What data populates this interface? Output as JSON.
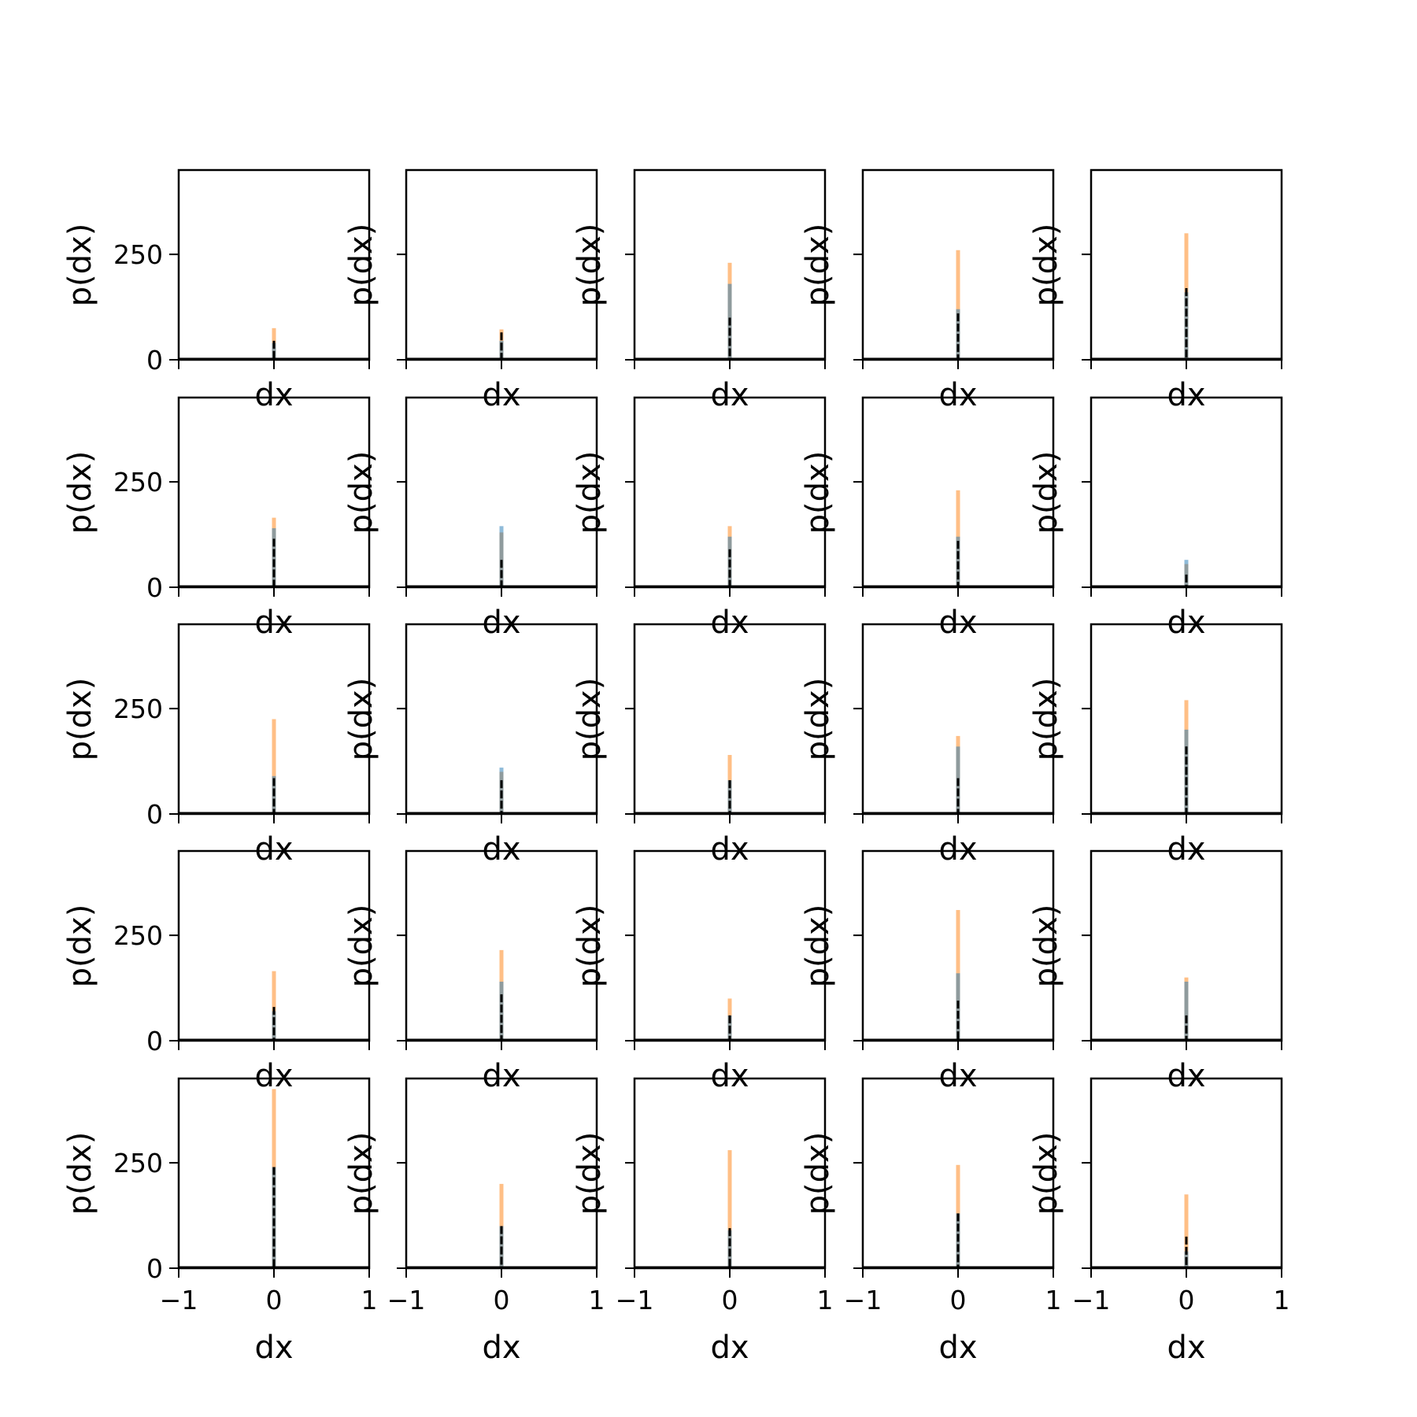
{
  "chart_data": {
    "type": "bar",
    "layout": "grid 5x5 of histogram panels",
    "xlabel": "dx",
    "ylabel": "p(dx)",
    "xlim": [
      -1,
      1
    ],
    "ylim": [
      0,
      450
    ],
    "xticks": [
      -1,
      0,
      1
    ],
    "xtick_labels": [
      "−1",
      "0",
      "1"
    ],
    "yticks": [
      0,
      250
    ],
    "ytick_labels": [
      "0",
      "250"
    ],
    "colors": {
      "series_a": "#1f77b4",
      "series_b": "#ff7f0e",
      "reference": "#000000"
    },
    "panels": [
      [
        {
          "orange": 75,
          "blue": 40,
          "black": 45
        },
        {
          "orange": 72,
          "blue": 45,
          "black": 65
        },
        {
          "orange": 230,
          "blue": 180,
          "black": 100
        },
        {
          "orange": 260,
          "blue": 120,
          "black": 110
        },
        {
          "orange": 300,
          "blue": 160,
          "black": 170
        }
      ],
      [
        {
          "orange": 165,
          "blue": 140,
          "black": 115
        },
        {
          "orange": 130,
          "blue": 145,
          "black": 65
        },
        {
          "orange": 145,
          "blue": 120,
          "black": 90
        },
        {
          "orange": 230,
          "blue": 120,
          "black": 110
        },
        {
          "orange": 55,
          "blue": 65,
          "black": 30
        }
      ],
      [
        {
          "orange": 225,
          "blue": 90,
          "black": 85
        },
        {
          "orange": 100,
          "blue": 110,
          "black": 80
        },
        {
          "orange": 140,
          "blue": 80,
          "black": 80
        },
        {
          "orange": 185,
          "blue": 160,
          "black": 85
        },
        {
          "orange": 270,
          "blue": 200,
          "black": 160
        }
      ],
      [
        {
          "orange": 165,
          "blue": 70,
          "black": 80
        },
        {
          "orange": 215,
          "blue": 140,
          "black": 110
        },
        {
          "orange": 100,
          "blue": 60,
          "black": 60
        },
        {
          "orange": 310,
          "blue": 160,
          "black": 95
        },
        {
          "orange": 150,
          "blue": 140,
          "black": 60
        }
      ],
      [
        {
          "orange": 425,
          "blue": 240,
          "black": 240
        },
        {
          "orange": 200,
          "blue": 100,
          "black": 100
        },
        {
          "orange": 280,
          "blue": 90,
          "black": 95
        },
        {
          "orange": 245,
          "blue": 130,
          "black": 130
        },
        {
          "orange": 175,
          "blue": 40,
          "black": 75
        }
      ]
    ]
  }
}
